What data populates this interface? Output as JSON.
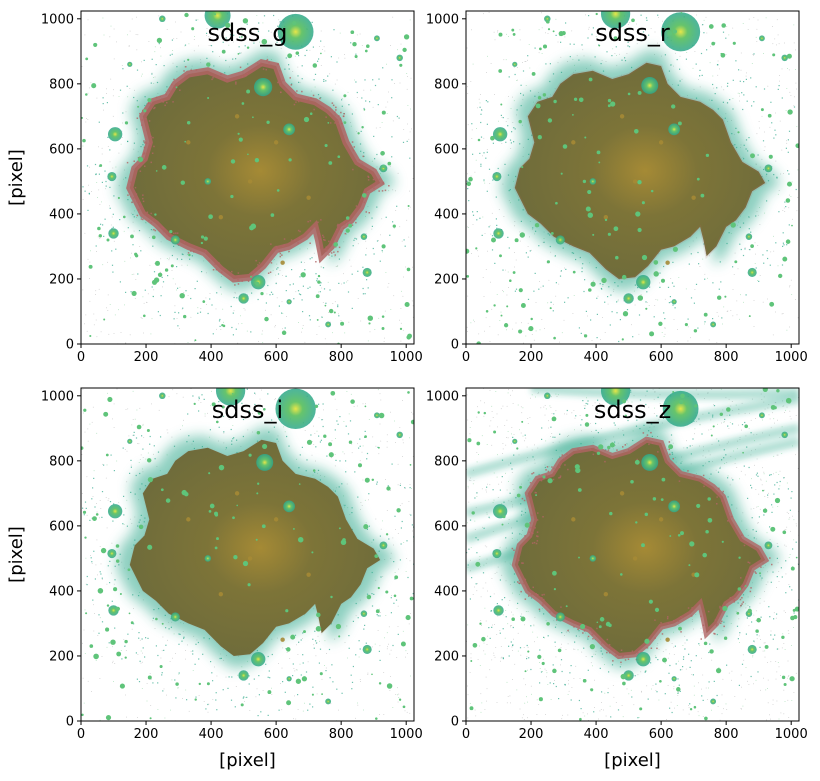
{
  "chart_data": [
    {
      "type": "image",
      "title": "sdss_g",
      "xlabel": "",
      "ylabel": "[pixel]",
      "xlim": [
        0,
        1024
      ],
      "ylim": [
        0,
        1024
      ],
      "xticks": [
        0,
        200,
        400,
        600,
        800,
        1000
      ],
      "yticks": [
        0,
        200,
        400,
        600,
        800,
        1000
      ],
      "show_xlabel": false,
      "show_ylabel": true,
      "red_residual": 1.0,
      "arcs": false,
      "stars": [
        [
          660,
          960,
          55
        ],
        [
          560,
          790,
          28
        ],
        [
          640,
          660,
          18
        ],
        [
          105,
          645,
          22
        ],
        [
          95,
          515,
          14
        ],
        [
          100,
          340,
          16
        ],
        [
          880,
          220,
          14
        ],
        [
          545,
          190,
          22
        ],
        [
          500,
          140,
          16
        ],
        [
          930,
          540,
          12
        ],
        [
          980,
          880,
          10
        ],
        [
          910,
          940,
          9
        ],
        [
          250,
          1000,
          10
        ],
        [
          420,
          1010,
          40
        ],
        [
          290,
          320,
          14
        ],
        [
          390,
          500,
          10
        ],
        [
          870,
          330,
          10
        ],
        [
          760,
          60,
          9
        ],
        [
          150,
          860,
          8
        ],
        [
          640,
          130,
          8
        ]
      ]
    },
    {
      "type": "image",
      "title": "sdss_r",
      "xlabel": "",
      "ylabel": "",
      "xlim": [
        0,
        1024
      ],
      "ylim": [
        0,
        1024
      ],
      "xticks": [
        0,
        200,
        400,
        600,
        800,
        1000
      ],
      "yticks": [
        0,
        200,
        400,
        600,
        800,
        1000
      ],
      "show_xlabel": false,
      "show_ylabel": false,
      "red_residual": 0.15,
      "arcs": false,
      "stars": [
        [
          660,
          960,
          60
        ],
        [
          565,
          795,
          26
        ],
        [
          640,
          660,
          18
        ],
        [
          105,
          645,
          22
        ],
        [
          95,
          515,
          14
        ],
        [
          100,
          340,
          16
        ],
        [
          880,
          220,
          14
        ],
        [
          545,
          190,
          22
        ],
        [
          500,
          140,
          16
        ],
        [
          930,
          540,
          12
        ],
        [
          980,
          880,
          10
        ],
        [
          910,
          940,
          9
        ],
        [
          250,
          1000,
          10
        ],
        [
          460,
          1015,
          45
        ],
        [
          290,
          320,
          14
        ],
        [
          390,
          500,
          10
        ],
        [
          870,
          330,
          10
        ],
        [
          760,
          60,
          9
        ],
        [
          150,
          860,
          8
        ],
        [
          640,
          130,
          8
        ]
      ]
    },
    {
      "type": "image",
      "title": "sdss_i",
      "xlabel": "[pixel]",
      "ylabel": "[pixel]",
      "xlim": [
        0,
        1024
      ],
      "ylim": [
        0,
        1024
      ],
      "xticks": [
        0,
        200,
        400,
        600,
        800,
        1000
      ],
      "yticks": [
        0,
        200,
        400,
        600,
        800,
        1000
      ],
      "show_xlabel": true,
      "show_ylabel": true,
      "red_residual": 0.05,
      "arcs": false,
      "stars": [
        [
          660,
          960,
          62
        ],
        [
          565,
          795,
          26
        ],
        [
          640,
          660,
          18
        ],
        [
          105,
          645,
          22
        ],
        [
          95,
          515,
          14
        ],
        [
          100,
          340,
          16
        ],
        [
          880,
          220,
          14
        ],
        [
          545,
          190,
          22
        ],
        [
          500,
          140,
          16
        ],
        [
          930,
          540,
          12
        ],
        [
          980,
          880,
          10
        ],
        [
          910,
          940,
          9
        ],
        [
          250,
          1000,
          10
        ],
        [
          460,
          1015,
          45
        ],
        [
          290,
          320,
          14
        ],
        [
          390,
          500,
          10
        ],
        [
          870,
          330,
          10
        ],
        [
          760,
          60,
          9
        ],
        [
          150,
          860,
          8
        ],
        [
          640,
          130,
          8
        ]
      ]
    },
    {
      "type": "image",
      "title": "sdss_z",
      "xlabel": "[pixel]",
      "ylabel": "",
      "xlim": [
        0,
        1024
      ],
      "ylim": [
        0,
        1024
      ],
      "xticks": [
        0,
        200,
        400,
        600,
        800,
        1000
      ],
      "yticks": [
        0,
        200,
        400,
        600,
        800,
        1000
      ],
      "show_xlabel": true,
      "show_ylabel": false,
      "red_residual": 0.8,
      "arcs": true,
      "stars": [
        [
          660,
          960,
          55
        ],
        [
          565,
          795,
          26
        ],
        [
          640,
          660,
          18
        ],
        [
          105,
          645,
          22
        ],
        [
          95,
          515,
          14
        ],
        [
          100,
          340,
          16
        ],
        [
          880,
          220,
          14
        ],
        [
          545,
          190,
          22
        ],
        [
          500,
          140,
          16
        ],
        [
          930,
          540,
          12
        ],
        [
          980,
          880,
          10
        ],
        [
          910,
          940,
          9
        ],
        [
          250,
          1000,
          10
        ],
        [
          460,
          1015,
          45
        ],
        [
          290,
          320,
          14
        ],
        [
          390,
          500,
          10
        ],
        [
          870,
          330,
          10
        ],
        [
          760,
          60,
          9
        ],
        [
          150,
          860,
          8
        ],
        [
          640,
          130,
          8
        ]
      ]
    }
  ],
  "colors": {
    "galaxy_body": "#6b6a3c",
    "galaxy_core": "#a58a35",
    "halo": "#2fa88b",
    "stars": "#5fc47a",
    "star_core": "#e6e64a",
    "red_residual": "#b26464",
    "axes": "#000000"
  }
}
